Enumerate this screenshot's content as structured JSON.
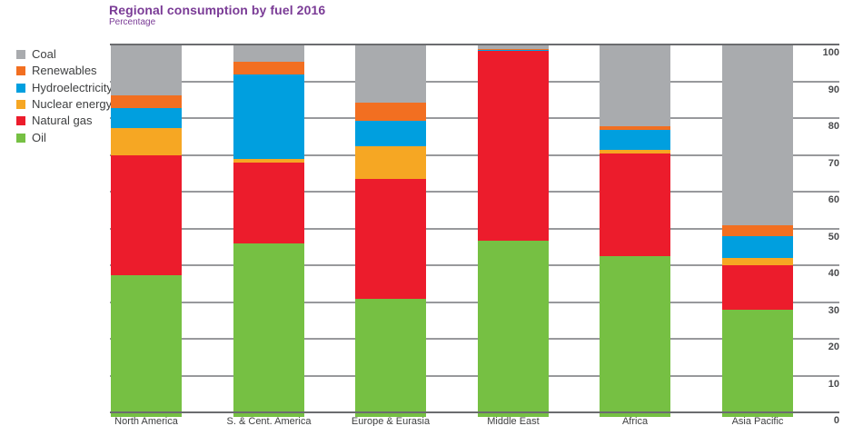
{
  "header": {
    "title": "Regional consumption by fuel 2016",
    "subtitle": "Percentage"
  },
  "legend": {
    "items": [
      {
        "label": "Coal",
        "color": "#a9abae"
      },
      {
        "label": "Renewables",
        "color": "#f26f21"
      },
      {
        "label": "Hydroelectricity",
        "color": "#009fdf"
      },
      {
        "label": "Nuclear energy",
        "color": "#f6a723"
      },
      {
        "label": "Natural gas",
        "color": "#ec1c2c"
      },
      {
        "label": "Oil",
        "color": "#76c043"
      }
    ]
  },
  "chart_data": {
    "type": "bar",
    "stacked": true,
    "title": "Regional consumption by fuel 2016",
    "ylabel": "Percentage",
    "ylim": [
      0,
      100
    ],
    "yticks": [
      0,
      10,
      20,
      30,
      40,
      50,
      60,
      70,
      80,
      90,
      100
    ],
    "grid": true,
    "legend_position": "top-left",
    "categories": [
      "North America",
      "S. & Cent. America",
      "Europe & Eurasia",
      "Middle East",
      "Africa",
      "Asia Pacific"
    ],
    "series": [
      {
        "name": "Oil",
        "color": "#76c043",
        "values": [
          37.5,
          46.0,
          31.0,
          47.0,
          42.5,
          28.0
        ]
      },
      {
        "name": "Natural gas",
        "color": "#ec1c2c",
        "values": [
          32.5,
          22.0,
          32.5,
          51.5,
          28.0,
          12.0
        ]
      },
      {
        "name": "Nuclear energy",
        "color": "#f6a723",
        "values": [
          7.5,
          1.0,
          9.0,
          0.0,
          1.0,
          2.0
        ]
      },
      {
        "name": "Hydroelectricity",
        "color": "#009fdf",
        "values": [
          5.5,
          23.0,
          7.0,
          0.3,
          5.5,
          6.0
        ]
      },
      {
        "name": "Renewables",
        "color": "#f26f21",
        "values": [
          3.5,
          3.5,
          5.0,
          0.2,
          1.0,
          3.0
        ]
      },
      {
        "name": "Coal",
        "color": "#a9abae",
        "values": [
          13.5,
          4.5,
          15.5,
          1.0,
          22.0,
          49.0
        ]
      }
    ]
  },
  "colors": {
    "title": "#7a3b96",
    "gridline": "#98999c",
    "gridline_edge": "#6b6c6f",
    "axis_text": "#3f4041",
    "tick_text": "#4a4b4d",
    "background": "#ffffff"
  }
}
